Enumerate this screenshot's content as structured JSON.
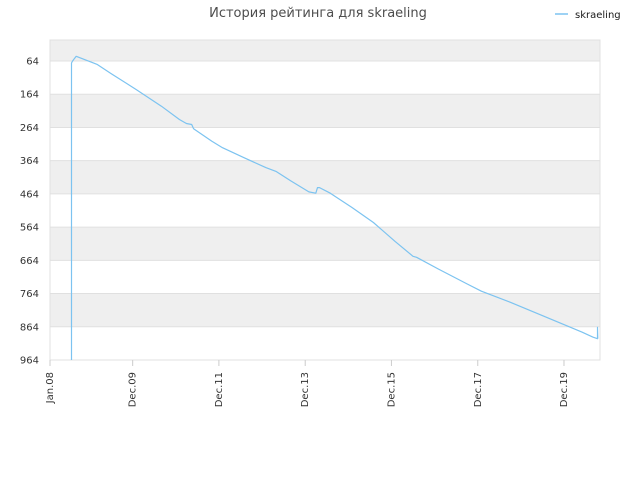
{
  "chart_data": {
    "type": "line",
    "title": "История рейтинга для skraeling",
    "xlabel": "",
    "ylabel": "",
    "y_inverted": true,
    "ylim": [
      964,
      30
    ],
    "xlim": [
      "2008-01-01",
      "2020-10-01"
    ],
    "x_ticks": [
      {
        "label": "Jan.08",
        "date": "2008-01-01"
      },
      {
        "label": "Dec.09",
        "date": "2009-12-01"
      },
      {
        "label": "Dec.11",
        "date": "2011-12-01"
      },
      {
        "label": "Dec.13",
        "date": "2013-12-01"
      },
      {
        "label": "Dec.15",
        "date": "2015-12-01"
      },
      {
        "label": "Dec.17",
        "date": "2017-12-01"
      },
      {
        "label": "Dec.19",
        "date": "2019-12-01"
      }
    ],
    "y_ticks": [
      64,
      164,
      264,
      364,
      464,
      564,
      664,
      764,
      864,
      964
    ],
    "grid": true,
    "legend_position": "top-right",
    "series": [
      {
        "name": "skraeling",
        "color": "#7cc3f0",
        "points": [
          {
            "date": "2008-07-01",
            "rank": 964
          },
          {
            "date": "2008-07-01",
            "rank": 70
          },
          {
            "date": "2008-07-10",
            "rank": 64
          },
          {
            "date": "2008-07-25",
            "rank": 57
          },
          {
            "date": "2008-08-10",
            "rank": 50
          },
          {
            "date": "2009-02-01",
            "rank": 74
          },
          {
            "date": "2009-06-01",
            "rank": 102
          },
          {
            "date": "2010-01-01",
            "rank": 150
          },
          {
            "date": "2010-08-01",
            "rank": 200
          },
          {
            "date": "2011-01-01",
            "rank": 240
          },
          {
            "date": "2011-03-01",
            "rank": 252
          },
          {
            "date": "2011-04-15",
            "rank": 255
          },
          {
            "date": "2011-05-01",
            "rank": 268
          },
          {
            "date": "2011-10-01",
            "rank": 305
          },
          {
            "date": "2012-01-01",
            "rank": 325
          },
          {
            "date": "2012-07-01",
            "rank": 355
          },
          {
            "date": "2013-01-01",
            "rank": 385
          },
          {
            "date": "2013-04-01",
            "rank": 397
          },
          {
            "date": "2013-08-01",
            "rank": 425
          },
          {
            "date": "2014-01-01",
            "rank": 458
          },
          {
            "date": "2014-03-01",
            "rank": 462
          },
          {
            "date": "2014-03-15",
            "rank": 445
          },
          {
            "date": "2014-04-01",
            "rank": 445
          },
          {
            "date": "2014-07-01",
            "rank": 462
          },
          {
            "date": "2015-01-01",
            "rank": 505
          },
          {
            "date": "2015-07-01",
            "rank": 550
          },
          {
            "date": "2016-01-01",
            "rank": 607
          },
          {
            "date": "2016-06-01",
            "rank": 652
          },
          {
            "date": "2016-07-01",
            "rank": 655
          },
          {
            "date": "2017-01-01",
            "rank": 690
          },
          {
            "date": "2017-09-01",
            "rank": 735
          },
          {
            "date": "2018-01-01",
            "rank": 757
          },
          {
            "date": "2018-09-01",
            "rank": 790
          },
          {
            "date": "2019-07-01",
            "rank": 835
          },
          {
            "date": "2020-05-01",
            "rank": 880
          },
          {
            "date": "2020-08-01",
            "rank": 895
          },
          {
            "date": "2020-09-10",
            "rank": 900
          },
          {
            "date": "2020-09-10",
            "rank": 866
          },
          {
            "date": "2020-09-12",
            "rank": 900
          }
        ]
      }
    ]
  }
}
